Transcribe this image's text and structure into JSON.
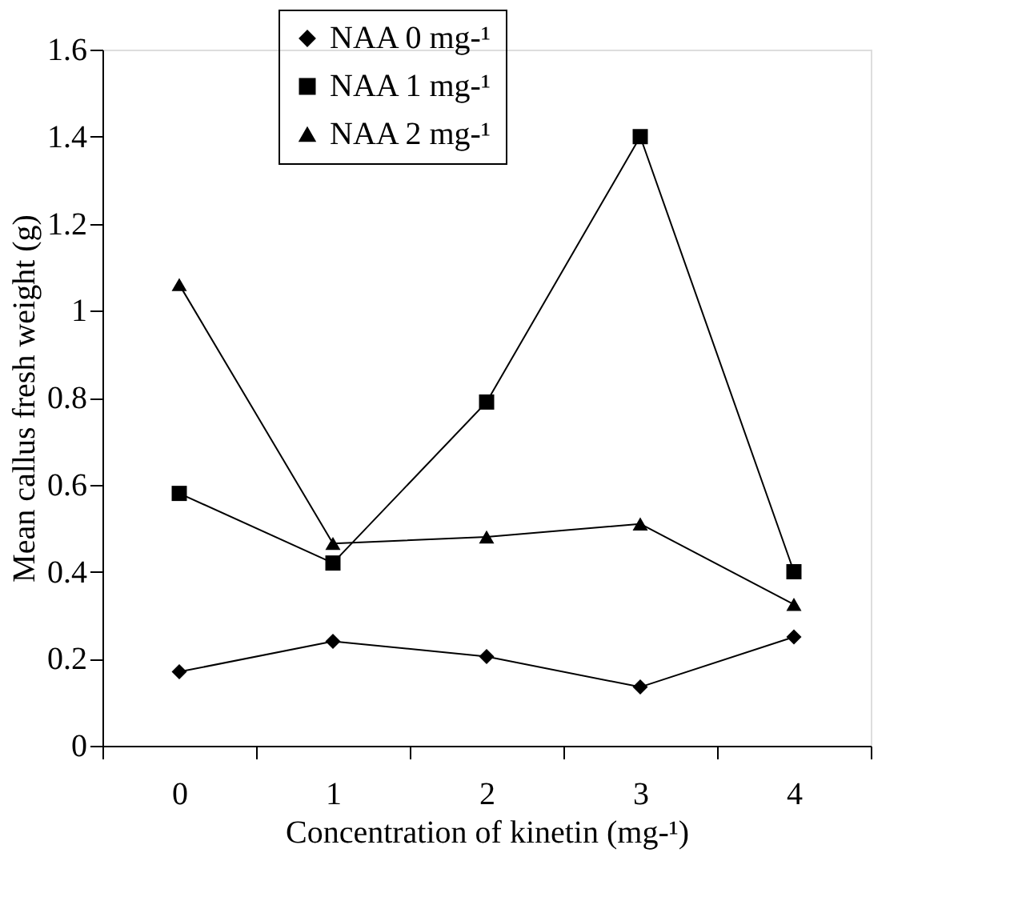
{
  "chart_data": {
    "type": "line",
    "xlabel": "Concentration of kinetin (mg-¹)",
    "ylabel": "Mean callus fresh weight (g)",
    "categories": [
      "0",
      "1",
      "2",
      "3",
      "4"
    ],
    "series": [
      {
        "name": "NAA 0 mg-¹",
        "color": "#000000",
        "marker": "diamond",
        "values": [
          0.17,
          0.24,
          0.205,
          0.135,
          0.25
        ]
      },
      {
        "name": "NAA 1 mg-¹",
        "color": "#000000",
        "marker": "square",
        "values": [
          0.58,
          0.42,
          0.79,
          1.4,
          0.4
        ]
      },
      {
        "name": "NAA 2 mg-¹",
        "color": "#000000",
        "marker": "triangle",
        "values": [
          1.06,
          0.465,
          0.48,
          0.51,
          0.325
        ]
      }
    ],
    "ylim": [
      0,
      1.6
    ],
    "yticks": [
      0,
      0.2,
      0.4,
      0.6,
      0.8,
      1,
      1.2,
      1.4,
      1.6
    ],
    "grid": false,
    "legend": "top left",
    "line_style": "solid"
  }
}
